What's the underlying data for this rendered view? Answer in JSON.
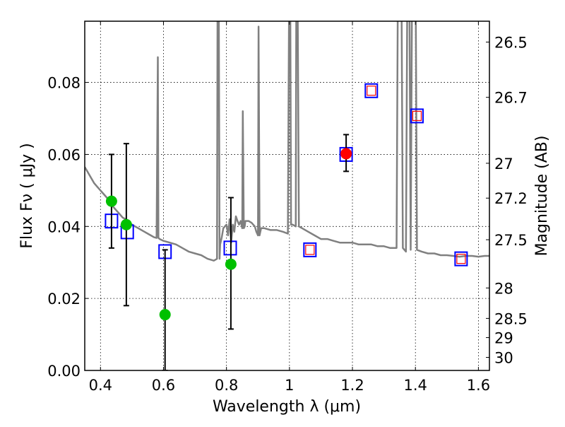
{
  "chart_data": {
    "type": "scatter",
    "title": "",
    "xlabel": "Wavelength  λ (μm)",
    "ylabel": "Flux  Fν  ( μJy )",
    "ylabel_right": "Magnitude (AB)",
    "xlim": [
      0.35,
      1.635
    ],
    "ylim": [
      0.0,
      0.097
    ],
    "grid": true,
    "x_ticks": [
      0.4,
      0.6,
      0.8,
      1.0,
      1.2,
      1.4,
      1.6
    ],
    "x_tick_labels": [
      "0.4",
      "0.6",
      "0.8",
      "1",
      "1.2",
      "1.4",
      "1.6"
    ],
    "y_ticks": [
      0.0,
      0.02,
      0.04,
      0.06,
      0.08
    ],
    "y_tick_labels": [
      "0.00",
      "0.02",
      "0.04",
      "0.06",
      "0.08"
    ],
    "right_ticks": [
      {
        "label": "26.5",
        "mag": 26.5
      },
      {
        "label": "26.7",
        "mag": 26.7
      },
      {
        "label": "27",
        "mag": 27.0
      },
      {
        "label": "27.2",
        "mag": 27.2
      },
      {
        "label": "27.5",
        "mag": 27.5
      },
      {
        "label": "28",
        "mag": 28.0
      },
      {
        "label": "28.5",
        "mag": 28.5
      },
      {
        "label": "29",
        "mag": 29.0
      },
      {
        "label": "30",
        "mag": 30.0
      }
    ],
    "series": [
      {
        "name": "model spectrum",
        "kind": "line",
        "color": "#808080",
        "x": [
          0.35,
          0.36,
          0.37,
          0.38,
          0.39,
          0.4,
          0.41,
          0.42,
          0.43,
          0.44,
          0.45,
          0.46,
          0.47,
          0.48,
          0.49,
          0.5,
          0.51,
          0.52,
          0.53,
          0.54,
          0.55,
          0.56,
          0.57,
          0.578,
          0.582,
          0.584,
          0.588,
          0.6,
          0.62,
          0.64,
          0.66,
          0.68,
          0.7,
          0.72,
          0.74,
          0.76,
          0.77,
          0.772,
          0.775,
          0.778,
          0.78,
          0.785,
          0.79,
          0.8,
          0.805,
          0.81,
          0.815,
          0.82,
          0.825,
          0.83,
          0.835,
          0.84,
          0.845,
          0.85,
          0.852,
          0.855,
          0.858,
          0.86,
          0.87,
          0.88,
          0.89,
          0.895,
          0.9,
          0.902,
          0.905,
          0.91,
          0.92,
          0.94,
          0.96,
          0.98,
          0.995,
          1.0,
          1.002,
          1.005,
          1.01,
          1.02,
          1.022,
          1.025,
          1.03,
          1.04,
          1.06,
          1.08,
          1.1,
          1.12,
          1.14,
          1.16,
          1.18,
          1.2,
          1.22,
          1.24,
          1.26,
          1.28,
          1.3,
          1.32,
          1.34,
          1.345,
          1.35,
          1.355,
          1.36,
          1.37,
          1.375,
          1.38,
          1.385,
          1.39,
          1.395,
          1.4,
          1.405,
          1.42,
          1.44,
          1.46,
          1.48,
          1.5,
          1.52,
          1.54,
          1.56,
          1.58,
          1.6,
          1.62,
          1.635
        ],
        "y": [
          0.0565,
          0.055,
          0.0535,
          0.052,
          0.051,
          0.05,
          0.049,
          0.048,
          0.0465,
          0.0455,
          0.0445,
          0.0435,
          0.0425,
          0.042,
          0.0412,
          0.0405,
          0.04,
          0.0395,
          0.039,
          0.0385,
          0.038,
          0.0375,
          0.037,
          0.0368,
          0.087,
          0.0368,
          0.0365,
          0.036,
          0.0355,
          0.035,
          0.034,
          0.033,
          0.0325,
          0.032,
          0.031,
          0.0305,
          0.031,
          0.12,
          0.12,
          0.031,
          0.035,
          0.037,
          0.0395,
          0.0405,
          0.0375,
          0.042,
          0.0355,
          0.0405,
          0.0385,
          0.0428,
          0.0415,
          0.0405,
          0.0415,
          0.0395,
          0.072,
          0.0395,
          0.04,
          0.0415,
          0.0415,
          0.041,
          0.04,
          0.0385,
          0.0375,
          0.0955,
          0.0375,
          0.0395,
          0.0395,
          0.039,
          0.039,
          0.0385,
          0.038,
          0.12,
          0.12,
          0.0405,
          0.0405,
          0.04,
          0.12,
          0.12,
          0.04,
          0.0395,
          0.0385,
          0.0375,
          0.0365,
          0.0365,
          0.036,
          0.0355,
          0.0355,
          0.0355,
          0.035,
          0.035,
          0.035,
          0.0345,
          0.0345,
          0.034,
          0.034,
          0.12,
          0.12,
          0.12,
          0.034,
          0.033,
          0.12,
          0.12,
          0.0335,
          0.12,
          0.12,
          0.12,
          0.0335,
          0.033,
          0.0325,
          0.0325,
          0.032,
          0.032,
          0.0318,
          0.0316,
          0.0318,
          0.0318,
          0.0316,
          0.0318,
          0.0318
        ]
      },
      {
        "name": "blue squares",
        "kind": "square",
        "color": "#0000ff",
        "x": [
          0.435,
          0.485,
          0.605,
          0.812,
          1.065,
          1.18,
          1.26,
          1.405,
          1.545
        ],
        "y": [
          0.0415,
          0.0385,
          0.033,
          0.034,
          0.0335,
          0.06,
          0.0777,
          0.0707,
          0.031
        ]
      },
      {
        "name": "red squares",
        "kind": "small-square",
        "color": "#ff0000",
        "x": [
          1.065,
          1.26,
          1.405,
          1.545
        ],
        "y": [
          0.0335,
          0.0777,
          0.0707,
          0.031
        ]
      },
      {
        "name": "green detections",
        "kind": "circle",
        "color": "#00c000",
        "x": [
          0.435,
          0.482,
          0.605,
          0.814
        ],
        "y": [
          0.047,
          0.0405,
          0.0155,
          0.0295
        ],
        "err_low": [
          0.034,
          0.018,
          0.0,
          0.0115
        ],
        "err_high": [
          0.06,
          0.063,
          0.0335,
          0.048
        ]
      },
      {
        "name": "red detection",
        "kind": "circle",
        "color": "#ff0000",
        "x": [
          1.18
        ],
        "y": [
          0.0602
        ],
        "err_low": [
          0.0553
        ],
        "err_high": [
          0.0655
        ]
      }
    ]
  }
}
